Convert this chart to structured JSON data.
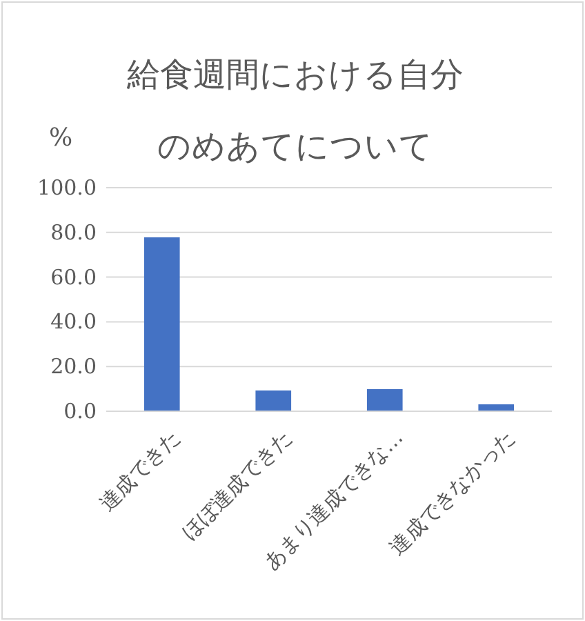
{
  "chart_data": {
    "type": "bar",
    "title": "給食週間における自分のめあてについて",
    "ylabel": "%",
    "categories": [
      "達成できた",
      "ほぼ達成できた",
      "あまり達成できな…",
      "達成できなかった"
    ],
    "values": [
      77.8,
      9.3,
      9.9,
      3.1
    ],
    "color": "#4472c4",
    "ylim": [
      0,
      100
    ],
    "yticks": [
      {
        "value": 0,
        "label": "0.0"
      },
      {
        "value": 20,
        "label": "20.0"
      },
      {
        "value": 40,
        "label": "40.0"
      },
      {
        "value": 60,
        "label": "60.0"
      },
      {
        "value": 80,
        "label": "80.0"
      },
      {
        "value": 100,
        "label": "100.0"
      }
    ],
    "grid": "y"
  }
}
